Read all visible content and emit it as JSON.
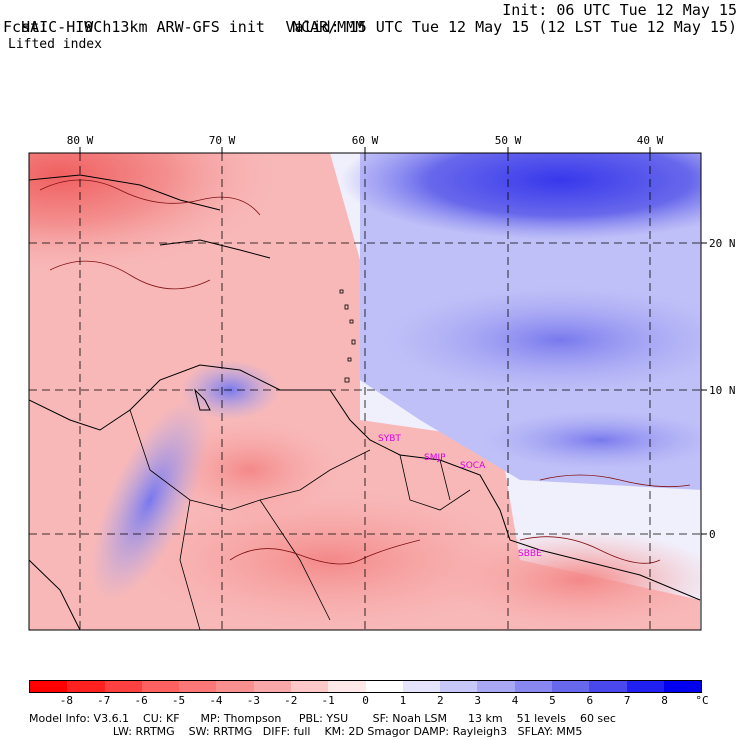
{
  "header": {
    "model_title": "HAIC-HIWC 13km ARW-GFS init",
    "org": "NCAR/MMM",
    "init": "Init: 06 UTC Tue 12 May 15",
    "fcst": "Fcst:    9 h",
    "valid": "Valid: 15 UTC Tue 12 May 15 (12 LST Tue 12 May 15)",
    "field": "Lifted index"
  },
  "map": {
    "lon_labels": [
      "80 W",
      "70 W",
      "60 W",
      "50 W",
      "40 W"
    ],
    "lat_labels": [
      "20 N",
      "10 N",
      "0"
    ],
    "stations": [
      "SYBT",
      "SMJP",
      "SOCA",
      "SBBE"
    ]
  },
  "colorbar": {
    "unit": "°C",
    "ticks": [
      "-8",
      "-7",
      "-6",
      "-5",
      "-4",
      "-3",
      "-2",
      "-1",
      "0",
      "1",
      "2",
      "3",
      "4",
      "5",
      "6",
      "7",
      "8"
    ],
    "colors": [
      "#ff0000",
      "#ff2020",
      "#ff4040",
      "#ff6060",
      "#fc7878",
      "#f89090",
      "#f8a8a8",
      "#fcc8c8",
      "#ffe8e8",
      "#ffffff",
      "#e4e4fc",
      "#c8c8f8",
      "#a8a8f4",
      "#8888f0",
      "#6868ec",
      "#4848ec",
      "#2020f0",
      "#0000f0"
    ]
  },
  "footer": {
    "line1": "Model Info: V3.6.1    CU: KF      MP: Thompson     PBL: YSU       SF: Noah LSM      13 km    51 levels    60 sec",
    "line2": "                        LW: RRTMG    SW: RRTMG   DIFF: full    KM: 2D Smagor DAMP: Rayleigh3   SFLAY: MM5"
  }
}
